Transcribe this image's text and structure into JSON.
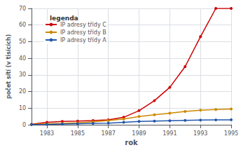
{
  "chart_data": {
    "type": "line",
    "xlabel": "rok",
    "ylabel": "počet sítí (v tisících)",
    "legend_title": "legenda",
    "x": [
      1982,
      1983,
      1984,
      1985,
      1986,
      1987,
      1988,
      1989,
      1990,
      1991,
      1992,
      1993,
      1994,
      1995
    ],
    "series": [
      {
        "name": "IP adresy třídy C",
        "color": "#cc0000",
        "marker": "circle",
        "values": [
          0.3,
          1.5,
          2.0,
          2.2,
          2.5,
          3.0,
          4.5,
          8.5,
          14.5,
          22.5,
          35.0,
          53.0,
          70.0,
          70.0
        ]
      },
      {
        "name": "IP adresy třídy B",
        "color": "#cc8800",
        "marker": "circle",
        "values": [
          0.2,
          0.5,
          0.8,
          1.2,
          1.8,
          2.5,
          3.5,
          5.0,
          6.0,
          7.0,
          8.0,
          8.8,
          9.2,
          9.5
        ]
      },
      {
        "name": "IP adresy třídy A",
        "color": "#2255aa",
        "marker": "circle",
        "values": [
          0.1,
          0.2,
          0.4,
          0.6,
          0.8,
          1.0,
          1.5,
          2.0,
          2.2,
          2.4,
          2.6,
          2.8,
          2.9,
          3.0
        ]
      }
    ],
    "xlim": [
      1982,
      1995
    ],
    "xticks": [
      1983,
      1985,
      1987,
      1989,
      1991,
      1993,
      1995
    ],
    "ylim": [
      0,
      70
    ],
    "yticks": [
      0,
      10,
      20,
      30,
      40,
      50,
      60,
      70
    ],
    "grid": true,
    "legend": "upper left"
  }
}
